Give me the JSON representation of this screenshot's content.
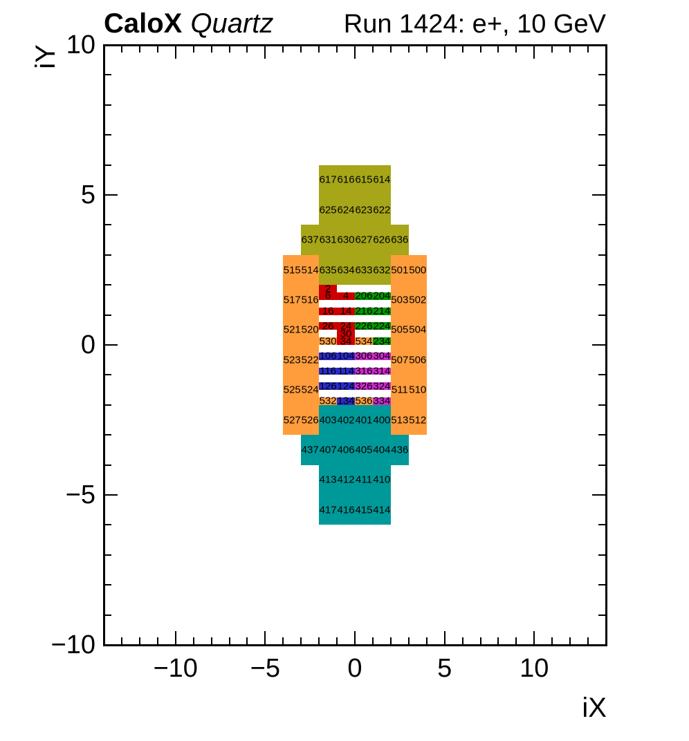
{
  "header": {
    "experiment": "CaloX",
    "subtitle": "Quartz",
    "run_label": "Run 1424: e+, 10 GeV"
  },
  "colors": {
    "olive": "#a6a618",
    "orange": "#ff9d3c",
    "teal": "#009999",
    "red": "#cc0000",
    "green": "#009900",
    "blue": "#2b2bcc",
    "magenta": "#cc2bcc"
  },
  "chart_data": {
    "type": "heatmap",
    "description": "Calorimeter channel map: channel numbers drawn at cell centers, colored by readout group",
    "axes": {
      "x_title": "iX",
      "y_title": "iY",
      "x_range": [
        -14,
        14
      ],
      "y_range": [
        -10,
        10
      ],
      "x_major": [
        {
          "v": -10,
          "t": "−10"
        },
        {
          "v": -5,
          "t": "−5"
        },
        {
          "v": 0,
          "t": "0"
        },
        {
          "v": 5,
          "t": "5"
        },
        {
          "v": 10,
          "t": "10"
        }
      ],
      "y_major": [
        {
          "v": 10,
          "t": "10"
        },
        {
          "v": 5,
          "t": "5"
        },
        {
          "v": 0,
          "t": "0"
        },
        {
          "v": -5,
          "t": "−5"
        },
        {
          "v": -10,
          "t": "−10"
        }
      ],
      "minor_tick_step": 1,
      "grid": false
    },
    "blocks": [
      {
        "x": -2,
        "y": 4,
        "w": 4,
        "h": 2,
        "c": "olive"
      },
      {
        "x": -3,
        "y": 3,
        "w": 6,
        "h": 1,
        "c": "olive"
      },
      {
        "x": -2,
        "y": 2,
        "w": 4,
        "h": 1,
        "c": "olive"
      },
      {
        "x": -4,
        "y": -3,
        "w": 2,
        "h": 6,
        "c": "orange"
      },
      {
        "x": 2,
        "y": -3,
        "w": 2,
        "h": 6,
        "c": "orange"
      },
      {
        "x": -2,
        "y": -3,
        "w": 4,
        "h": 1,
        "c": "teal"
      },
      {
        "x": -3,
        "y": -4,
        "w": 6,
        "h": 1,
        "c": "teal"
      },
      {
        "x": -2,
        "y": -6,
        "w": 4,
        "h": 2,
        "c": "teal"
      },
      {
        "x": -2,
        "y": 1.75,
        "w": 1,
        "h": 0.25,
        "c": "red"
      },
      {
        "x": -2,
        "y": 1.5,
        "w": 2,
        "h": 0.25,
        "c": "red"
      },
      {
        "x": 0,
        "y": 1.5,
        "w": 2,
        "h": 0.25,
        "c": "green"
      },
      {
        "x": -2,
        "y": 1,
        "w": 2,
        "h": 0.25,
        "c": "red"
      },
      {
        "x": 0,
        "y": 1,
        "w": 2,
        "h": 0.25,
        "c": "green"
      },
      {
        "x": -2,
        "y": 0.5,
        "w": 2,
        "h": 0.25,
        "c": "red"
      },
      {
        "x": 0,
        "y": 0.5,
        "w": 2,
        "h": 0.25,
        "c": "green"
      },
      {
        "x": -1,
        "y": 0.25,
        "w": 1,
        "h": 0.25,
        "c": "red"
      },
      {
        "x": -2,
        "y": 0,
        "w": 1,
        "h": 0.25,
        "c": "orange"
      },
      {
        "x": -1,
        "y": 0,
        "w": 1,
        "h": 0.25,
        "c": "red"
      },
      {
        "x": 0,
        "y": 0,
        "w": 1,
        "h": 0.25,
        "c": "orange"
      },
      {
        "x": 1,
        "y": 0,
        "w": 1,
        "h": 0.25,
        "c": "green"
      },
      {
        "x": -2,
        "y": -0.5,
        "w": 2,
        "h": 0.25,
        "c": "blue"
      },
      {
        "x": 0,
        "y": -0.5,
        "w": 2,
        "h": 0.25,
        "c": "magenta"
      },
      {
        "x": -2,
        "y": -1,
        "w": 2,
        "h": 0.25,
        "c": "blue"
      },
      {
        "x": 0,
        "y": -1,
        "w": 2,
        "h": 0.25,
        "c": "magenta"
      },
      {
        "x": -2,
        "y": -1.5,
        "w": 2,
        "h": 0.25,
        "c": "blue"
      },
      {
        "x": 0,
        "y": -1.5,
        "w": 2,
        "h": 0.25,
        "c": "magenta"
      },
      {
        "x": -2,
        "y": -2,
        "w": 1,
        "h": 0.25,
        "c": "orange"
      },
      {
        "x": -1,
        "y": -2,
        "w": 1,
        "h": 0.25,
        "c": "blue"
      },
      {
        "x": 0,
        "y": -2,
        "w": 1,
        "h": 0.25,
        "c": "orange"
      },
      {
        "x": 1,
        "y": -2,
        "w": 1,
        "h": 0.25,
        "c": "magenta"
      }
    ],
    "cells": [
      {
        "t": "617",
        "x": -1.5,
        "y": 5.5,
        "c": "olive"
      },
      {
        "t": "616",
        "x": -0.5,
        "y": 5.5,
        "c": "olive"
      },
      {
        "t": "615",
        "x": 0.5,
        "y": 5.5,
        "c": "olive"
      },
      {
        "t": "614",
        "x": 1.5,
        "y": 5.5,
        "c": "olive"
      },
      {
        "t": "625",
        "x": -1.5,
        "y": 4.5,
        "c": "olive"
      },
      {
        "t": "624",
        "x": -0.5,
        "y": 4.5,
        "c": "olive"
      },
      {
        "t": "623",
        "x": 0.5,
        "y": 4.5,
        "c": "olive"
      },
      {
        "t": "622",
        "x": 1.5,
        "y": 4.5,
        "c": "olive"
      },
      {
        "t": "637",
        "x": -2.5,
        "y": 3.5,
        "c": "olive"
      },
      {
        "t": "631",
        "x": -1.5,
        "y": 3.5,
        "c": "olive"
      },
      {
        "t": "630",
        "x": -0.5,
        "y": 3.5,
        "c": "olive"
      },
      {
        "t": "627",
        "x": 0.5,
        "y": 3.5,
        "c": "olive"
      },
      {
        "t": "626",
        "x": 1.5,
        "y": 3.5,
        "c": "olive"
      },
      {
        "t": "636",
        "x": 2.5,
        "y": 3.5,
        "c": "olive"
      },
      {
        "t": "515",
        "x": -3.5,
        "y": 2.5,
        "c": "orange"
      },
      {
        "t": "514",
        "x": -2.5,
        "y": 2.5,
        "c": "orange"
      },
      {
        "t": "635",
        "x": -1.5,
        "y": 2.5,
        "c": "olive"
      },
      {
        "t": "634",
        "x": -0.5,
        "y": 2.5,
        "c": "olive"
      },
      {
        "t": "633",
        "x": 0.5,
        "y": 2.5,
        "c": "olive"
      },
      {
        "t": "632",
        "x": 1.5,
        "y": 2.5,
        "c": "olive"
      },
      {
        "t": "501",
        "x": 2.5,
        "y": 2.5,
        "c": "orange"
      },
      {
        "t": "500",
        "x": 3.5,
        "y": 2.5,
        "c": "orange"
      },
      {
        "t": "2",
        "x": -1.5,
        "y": 1.875,
        "c": "red"
      },
      {
        "t": "517",
        "x": -3.5,
        "y": 1.5,
        "c": "orange"
      },
      {
        "t": "516",
        "x": -2.5,
        "y": 1.5,
        "c": "orange"
      },
      {
        "t": "6",
        "x": -1.5,
        "y": 1.625,
        "c": "red"
      },
      {
        "t": "4",
        "x": -0.5,
        "y": 1.625,
        "c": "red"
      },
      {
        "t": "206",
        "x": 0.5,
        "y": 1.625,
        "c": "green"
      },
      {
        "t": "204",
        "x": 1.5,
        "y": 1.625,
        "c": "green"
      },
      {
        "t": "503",
        "x": 2.5,
        "y": 1.5,
        "c": "orange"
      },
      {
        "t": "502",
        "x": 3.5,
        "y": 1.5,
        "c": "orange"
      },
      {
        "t": "16",
        "x": -1.5,
        "y": 1.125,
        "c": "red"
      },
      {
        "t": "14",
        "x": -0.5,
        "y": 1.125,
        "c": "red"
      },
      {
        "t": "216",
        "x": 0.5,
        "y": 1.125,
        "c": "green"
      },
      {
        "t": "214",
        "x": 1.5,
        "y": 1.125,
        "c": "green"
      },
      {
        "t": "521",
        "x": -3.5,
        "y": 0.5,
        "c": "orange"
      },
      {
        "t": "520",
        "x": -2.5,
        "y": 0.5,
        "c": "orange"
      },
      {
        "t": "26",
        "x": -1.5,
        "y": 0.625,
        "c": "red"
      },
      {
        "t": "24",
        "x": -0.5,
        "y": 0.625,
        "c": "red"
      },
      {
        "t": "226",
        "x": 0.5,
        "y": 0.625,
        "c": "green"
      },
      {
        "t": "224",
        "x": 1.5,
        "y": 0.625,
        "c": "green"
      },
      {
        "t": "505",
        "x": 2.5,
        "y": 0.5,
        "c": "orange"
      },
      {
        "t": "504",
        "x": 3.5,
        "y": 0.5,
        "c": "orange"
      },
      {
        "t": "30",
        "x": -0.5,
        "y": 0.375,
        "c": "red"
      },
      {
        "t": "530",
        "x": -1.5,
        "y": 0.125,
        "c": "orange"
      },
      {
        "t": "34",
        "x": -0.5,
        "y": 0.125,
        "c": "red"
      },
      {
        "t": "534",
        "x": 0.5,
        "y": 0.125,
        "c": "orange"
      },
      {
        "t": "234",
        "x": 1.5,
        "y": 0.125,
        "c": "green"
      },
      {
        "t": "523",
        "x": -3.5,
        "y": -0.5,
        "c": "orange"
      },
      {
        "t": "522",
        "x": -2.5,
        "y": -0.5,
        "c": "orange"
      },
      {
        "t": "106",
        "x": -1.5,
        "y": -0.375,
        "c": "blue"
      },
      {
        "t": "104",
        "x": -0.5,
        "y": -0.375,
        "c": "blue"
      },
      {
        "t": "306",
        "x": 0.5,
        "y": -0.375,
        "c": "magenta"
      },
      {
        "t": "304",
        "x": 1.5,
        "y": -0.375,
        "c": "magenta"
      },
      {
        "t": "507",
        "x": 2.5,
        "y": -0.5,
        "c": "orange"
      },
      {
        "t": "506",
        "x": 3.5,
        "y": -0.5,
        "c": "orange"
      },
      {
        "t": "116",
        "x": -1.5,
        "y": -0.875,
        "c": "blue"
      },
      {
        "t": "114",
        "x": -0.5,
        "y": -0.875,
        "c": "blue"
      },
      {
        "t": "316",
        "x": 0.5,
        "y": -0.875,
        "c": "magenta"
      },
      {
        "t": "314",
        "x": 1.5,
        "y": -0.875,
        "c": "magenta"
      },
      {
        "t": "525",
        "x": -3.5,
        "y": -1.5,
        "c": "orange"
      },
      {
        "t": "524",
        "x": -2.5,
        "y": -1.5,
        "c": "orange"
      },
      {
        "t": "126",
        "x": -1.5,
        "y": -1.375,
        "c": "blue"
      },
      {
        "t": "124",
        "x": -0.5,
        "y": -1.375,
        "c": "blue"
      },
      {
        "t": "326",
        "x": 0.5,
        "y": -1.375,
        "c": "magenta"
      },
      {
        "t": "324",
        "x": 1.5,
        "y": -1.375,
        "c": "magenta"
      },
      {
        "t": "511",
        "x": 2.5,
        "y": -1.5,
        "c": "orange"
      },
      {
        "t": "510",
        "x": 3.5,
        "y": -1.5,
        "c": "orange"
      },
      {
        "t": "532",
        "x": -1.5,
        "y": -1.875,
        "c": "orange"
      },
      {
        "t": "134",
        "x": -0.5,
        "y": -1.875,
        "c": "blue"
      },
      {
        "t": "536",
        "x": 0.5,
        "y": -1.875,
        "c": "orange"
      },
      {
        "t": "334",
        "x": 1.5,
        "y": -1.875,
        "c": "magenta"
      },
      {
        "t": "527",
        "x": -3.5,
        "y": -2.5,
        "c": "orange"
      },
      {
        "t": "526",
        "x": -2.5,
        "y": -2.5,
        "c": "orange"
      },
      {
        "t": "403",
        "x": -1.5,
        "y": -2.5,
        "c": "teal"
      },
      {
        "t": "402",
        "x": -0.5,
        "y": -2.5,
        "c": "teal"
      },
      {
        "t": "401",
        "x": 0.5,
        "y": -2.5,
        "c": "teal"
      },
      {
        "t": "400",
        "x": 1.5,
        "y": -2.5,
        "c": "teal"
      },
      {
        "t": "513",
        "x": 2.5,
        "y": -2.5,
        "c": "orange"
      },
      {
        "t": "512",
        "x": 3.5,
        "y": -2.5,
        "c": "orange"
      },
      {
        "t": "437",
        "x": -2.5,
        "y": -3.5,
        "c": "teal"
      },
      {
        "t": "407",
        "x": -1.5,
        "y": -3.5,
        "c": "teal"
      },
      {
        "t": "406",
        "x": -0.5,
        "y": -3.5,
        "c": "teal"
      },
      {
        "t": "405",
        "x": 0.5,
        "y": -3.5,
        "c": "teal"
      },
      {
        "t": "404",
        "x": 1.5,
        "y": -3.5,
        "c": "teal"
      },
      {
        "t": "436",
        "x": 2.5,
        "y": -3.5,
        "c": "teal"
      },
      {
        "t": "413",
        "x": -1.5,
        "y": -4.5,
        "c": "teal"
      },
      {
        "t": "412",
        "x": -0.5,
        "y": -4.5,
        "c": "teal"
      },
      {
        "t": "411",
        "x": 0.5,
        "y": -4.5,
        "c": "teal"
      },
      {
        "t": "410",
        "x": 1.5,
        "y": -4.5,
        "c": "teal"
      },
      {
        "t": "417",
        "x": -1.5,
        "y": -5.5,
        "c": "teal"
      },
      {
        "t": "416",
        "x": -0.5,
        "y": -5.5,
        "c": "teal"
      },
      {
        "t": "415",
        "x": 0.5,
        "y": -5.5,
        "c": "teal"
      },
      {
        "t": "414",
        "x": 1.5,
        "y": -5.5,
        "c": "teal"
      }
    ]
  }
}
